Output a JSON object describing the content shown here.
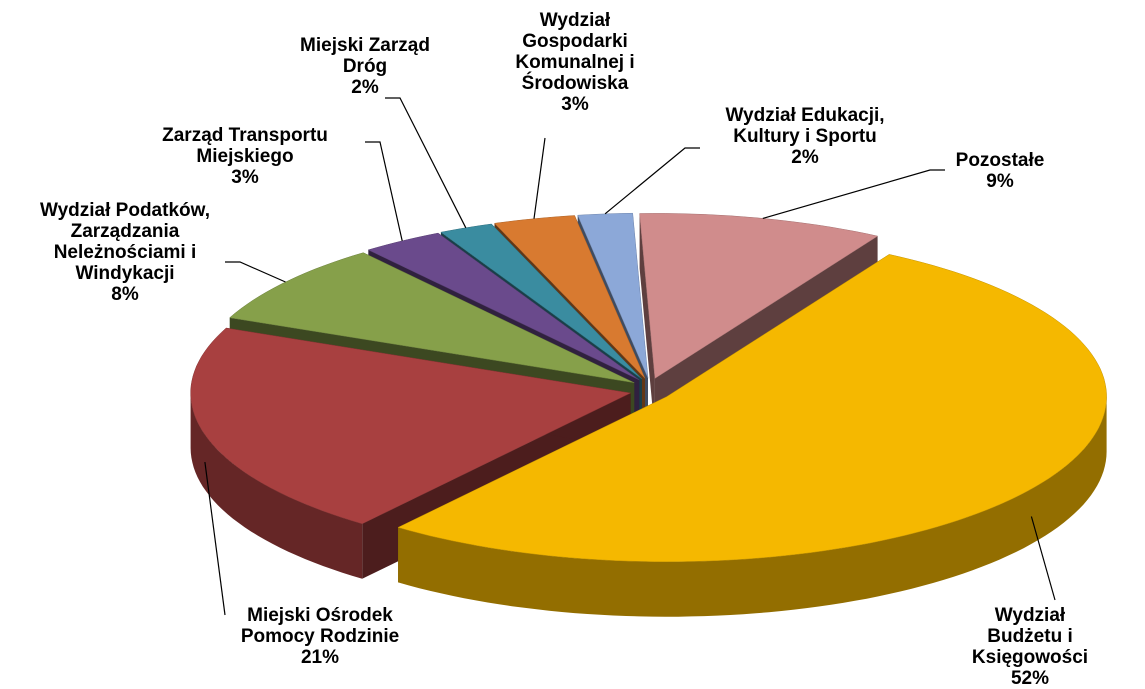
{
  "chart_data": {
    "type": "pie",
    "categories": [
      "Pozostałe",
      "Wydział Budżetu i\nKsięgowości",
      "Miejski Ośrodek\nPomocy Rodzinie",
      "Wydział Podatków,\nZarządzania\nNeleżnościami i\nWindykacji",
      "Zarząd Transportu\nMiejskiego",
      "Miejski Zarząd\nDróg",
      "Wydział\nGospodarki\nKomunalnej i\nŚrodowiska",
      "Wydział Edukacji,\nKultury i Sportu"
    ],
    "values": [
      9,
      52,
      21,
      8,
      3,
      2,
      3,
      2
    ],
    "value_labels": [
      "9%",
      "52%",
      "21%",
      "8%",
      "3%",
      "2%",
      "3%",
      "2%"
    ],
    "colors": [
      "#d08c8c",
      "#f5b800",
      "#a84040",
      "#86a04a",
      "#6a4a8c",
      "#3a8ca0",
      "#d87a30",
      "#8ca8d8"
    ]
  }
}
